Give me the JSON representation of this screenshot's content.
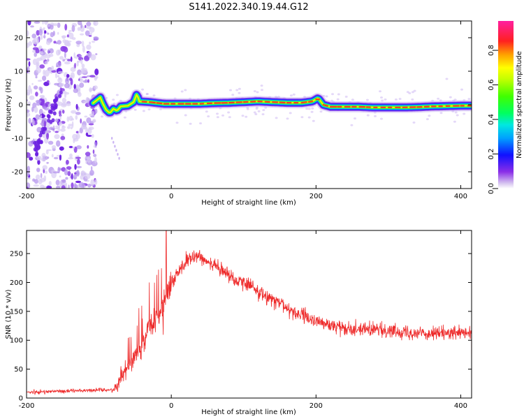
{
  "title": "S141.2022.340.19.44.G12",
  "colors": {
    "snr_line": "#ee2b2b",
    "spectrogram_low": "#7a2ee8",
    "spectrogram_high": "#ff2020",
    "frame": "#000000"
  },
  "chart_data": [
    {
      "type": "heatmap",
      "name": "spectrogram",
      "xlabel": "Height of straight line (km)",
      "ylabel": "Frequency (Hz)",
      "xlim": [
        -200,
        415
      ],
      "ylim": [
        -25,
        25
      ],
      "xticks": [
        -200,
        0,
        200,
        400
      ],
      "xtick_labels": [
        "-200",
        "0",
        "200",
        "400"
      ],
      "yticks": [
        -20,
        -10,
        0,
        10,
        20
      ],
      "ytick_labels": [
        "-20",
        "-10",
        "0",
        "10",
        "20"
      ],
      "colorbar": {
        "label": "Normalized spectral amplitude",
        "range": [
          0,
          0.97
        ],
        "ticks": [
          0.0,
          0.2,
          0.4,
          0.6,
          0.8
        ],
        "tick_labels": [
          "0.0",
          "0.2",
          "0.4",
          "0.6",
          "0.8"
        ],
        "colormap": "hsv-rainbow"
      },
      "noise_region_x": [
        -200,
        -103
      ],
      "signal_start_x": -108,
      "ridge": [
        [
          -108,
          0.5
        ],
        [
          -102,
          1.5
        ],
        [
          -98,
          2.2
        ],
        [
          -95,
          0.5
        ],
        [
          -90,
          -1.5
        ],
        [
          -85,
          -2.5
        ],
        [
          -80,
          -1.2
        ],
        [
          -75,
          -1.8
        ],
        [
          -70,
          -0.5
        ],
        [
          -60,
          -0.3
        ],
        [
          -52,
          0.8
        ],
        [
          -47,
          3.5
        ],
        [
          -45,
          1.0
        ],
        [
          -30,
          0.8
        ],
        [
          -10,
          0.3
        ],
        [
          0,
          0.3
        ],
        [
          20,
          0.3
        ],
        [
          40,
          0.3
        ],
        [
          60,
          0.5
        ],
        [
          80,
          0.6
        ],
        [
          100,
          0.8
        ],
        [
          120,
          1.0
        ],
        [
          140,
          0.8
        ],
        [
          160,
          0.6
        ],
        [
          180,
          0.6
        ],
        [
          195,
          1.0
        ],
        [
          203,
          2.0
        ],
        [
          210,
          0.0
        ],
        [
          220,
          -0.6
        ],
        [
          240,
          -0.6
        ],
        [
          260,
          -0.6
        ],
        [
          280,
          -0.8
        ],
        [
          300,
          -0.8
        ],
        [
          320,
          -0.8
        ],
        [
          340,
          -0.7
        ],
        [
          360,
          -0.5
        ],
        [
          380,
          -0.4
        ],
        [
          400,
          -0.3
        ],
        [
          415,
          -0.3
        ]
      ]
    },
    {
      "type": "line",
      "name": "snr",
      "xlabel": "Height of straight line (km)",
      "ylabel": "SNR (10 * v/v)",
      "xlim": [
        -200,
        415
      ],
      "ylim": [
        0,
        290
      ],
      "xticks": [
        -200,
        0,
        200,
        400
      ],
      "xtick_labels": [
        "-200",
        "0",
        "200",
        "400"
      ],
      "yticks": [
        0,
        50,
        100,
        150,
        200,
        250
      ],
      "ytick_labels": [
        "0",
        "50",
        "100",
        "150",
        "200",
        "250"
      ],
      "envelope": {
        "x": [
          -200,
          -150,
          -100,
          -78,
          -70,
          -60,
          -50,
          -40,
          -30,
          -20,
          -10,
          0,
          10,
          20,
          30,
          40,
          50,
          60,
          80,
          100,
          120,
          140,
          160,
          180,
          200,
          220,
          240,
          260,
          280,
          300,
          320,
          340,
          360,
          380,
          400,
          415
        ],
        "y": [
          10,
          12,
          14,
          14,
          40,
          55,
          75,
          95,
          120,
          140,
          165,
          195,
          220,
          235,
          242,
          245,
          238,
          228,
          212,
          200,
          185,
          170,
          155,
          143,
          133,
          125,
          122,
          120,
          118,
          117,
          115,
          113,
          112,
          111,
          112,
          112
        ]
      },
      "spike_max": {
        "x": -7,
        "y": 290
      }
    }
  ]
}
